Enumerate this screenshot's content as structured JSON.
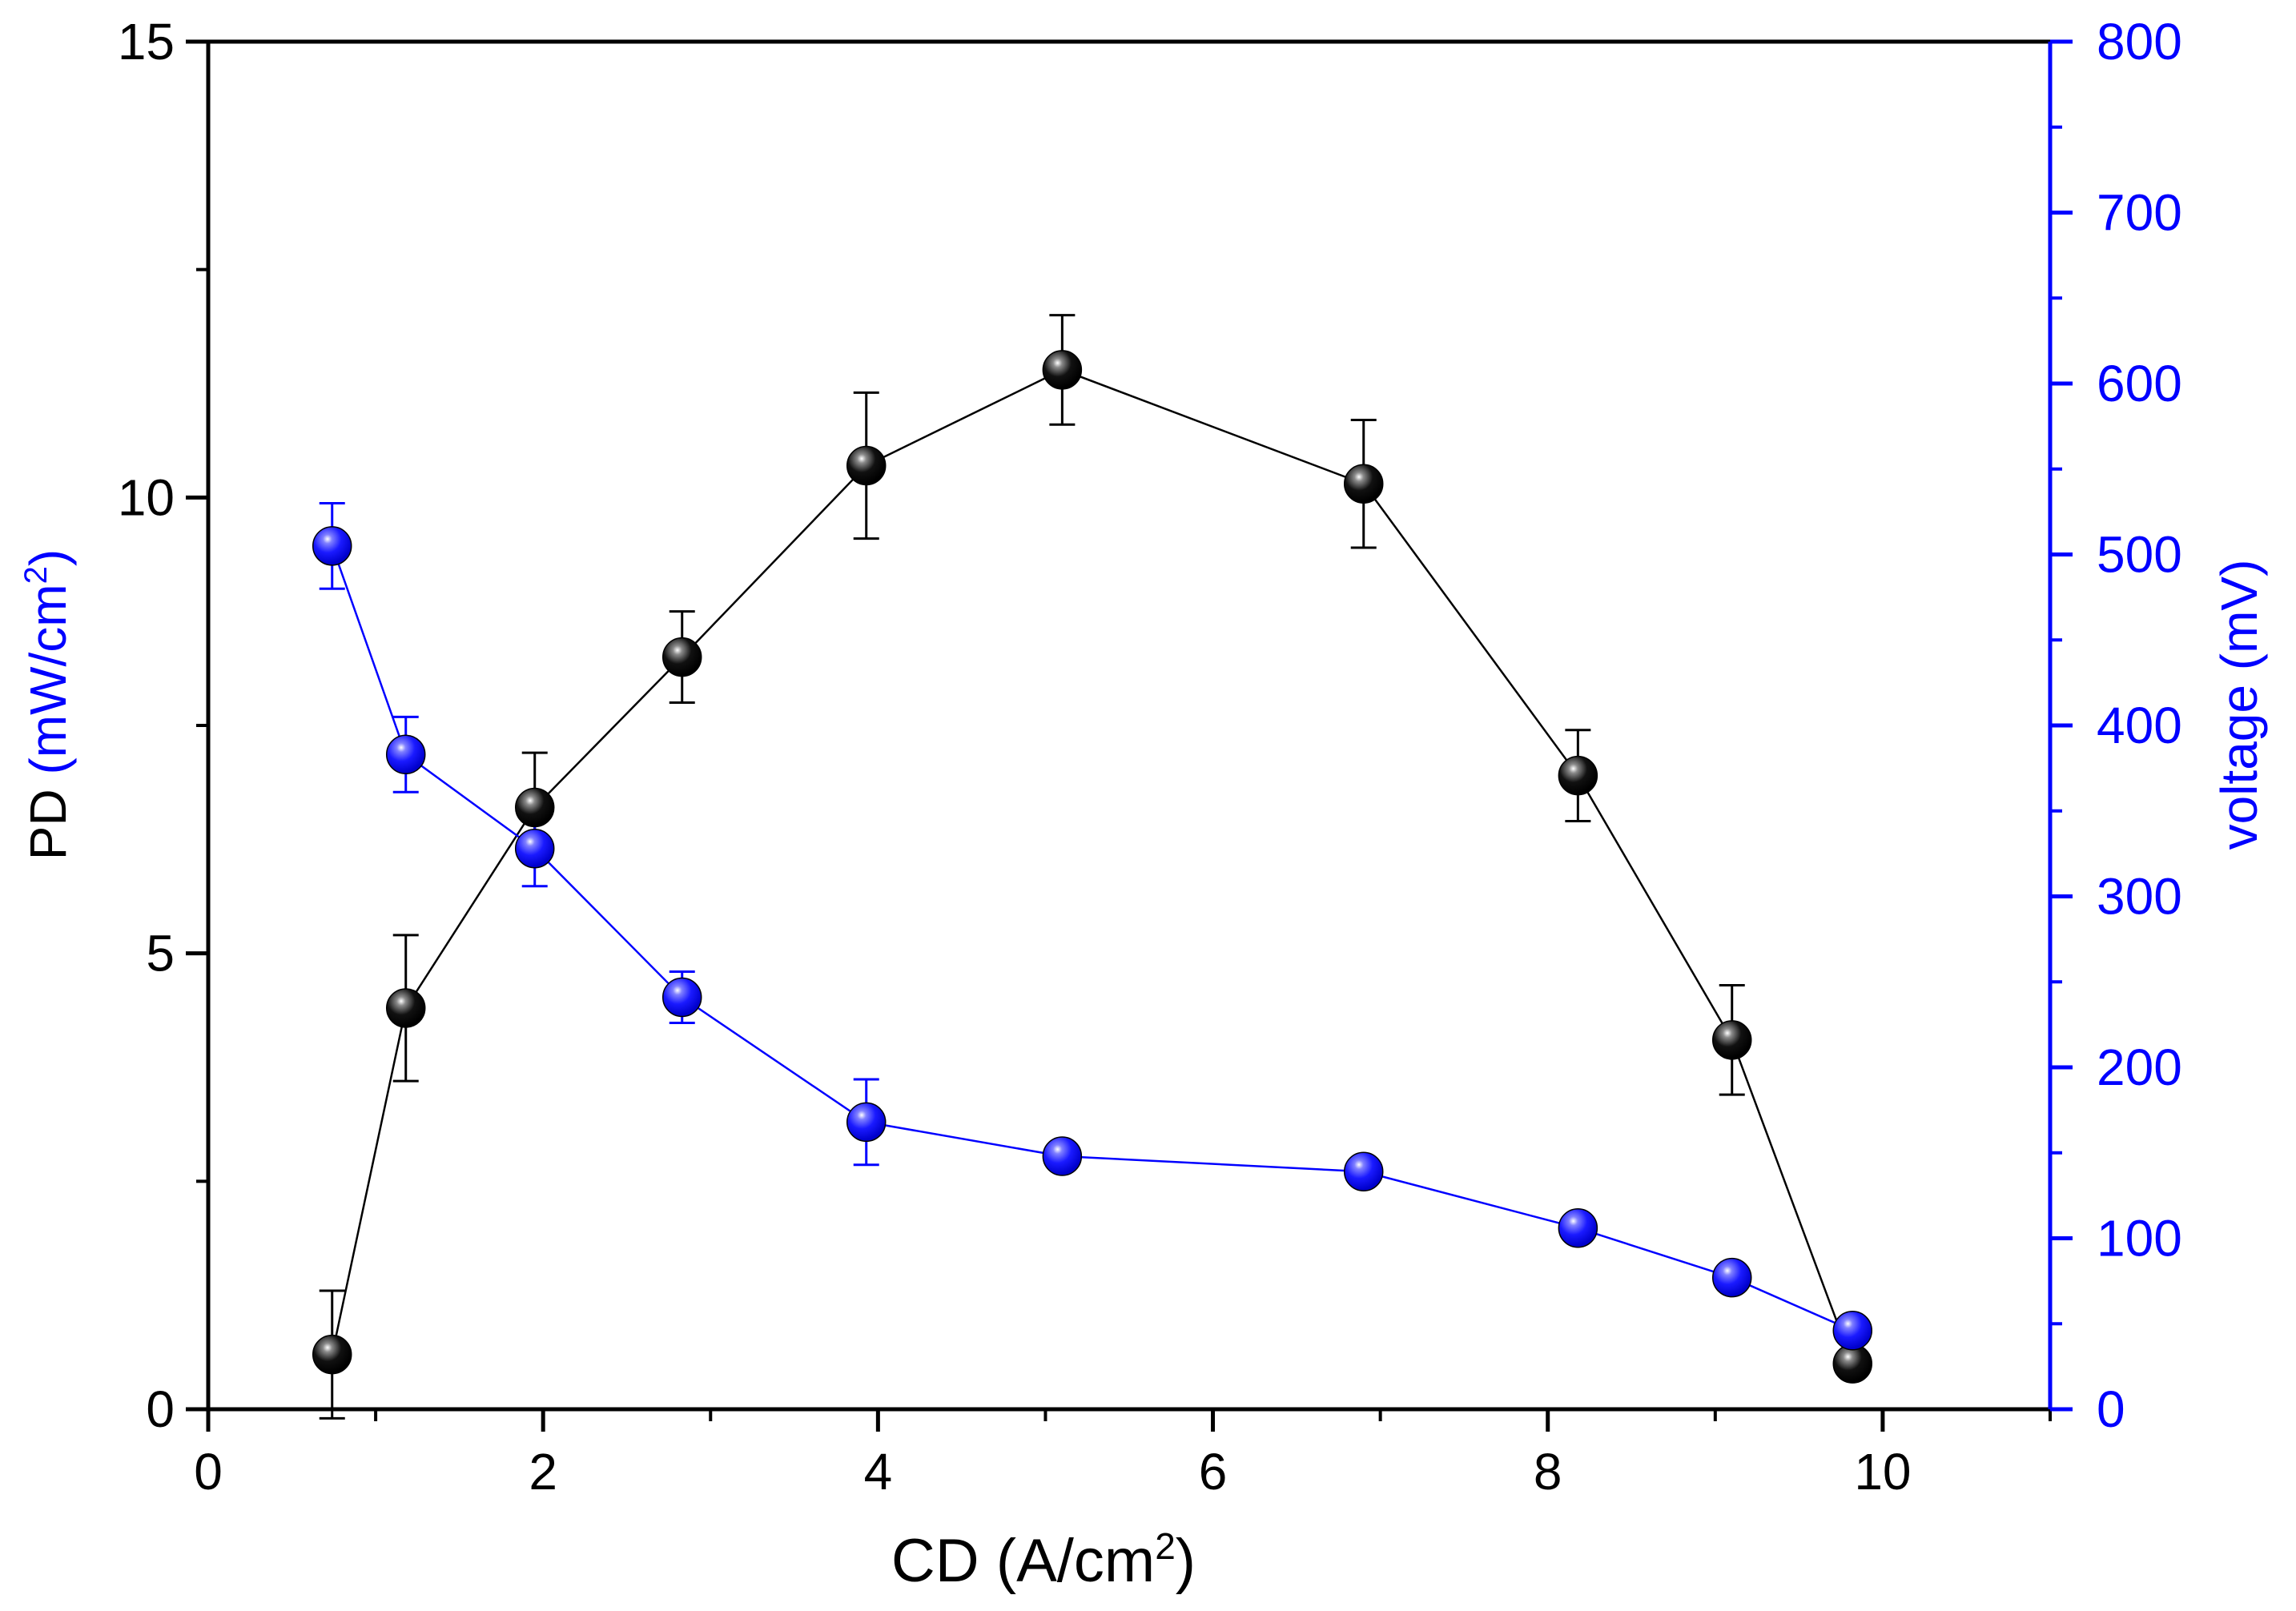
{
  "chart_data": {
    "type": "scatter",
    "title": "",
    "xlabel": {
      "base": "CD (A/cm",
      "sup": "2",
      "tail": ")"
    },
    "ylabel_left": {
      "part1": "PD",
      "part2": " (mW/cm",
      "sup": "2",
      "tail": ")"
    },
    "ylabel_right": "voltage (mV)",
    "xlim": [
      0,
      11
    ],
    "ylim_left": [
      0,
      15
    ],
    "ylim_right": [
      0,
      800
    ],
    "x_ticks": [
      "0",
      "2",
      "4",
      "6",
      "8",
      "10"
    ],
    "y_left_ticks": [
      "0",
      "5",
      "10",
      "15"
    ],
    "y_right_ticks": [
      "0",
      "100",
      "200",
      "300",
      "400",
      "500",
      "600",
      "700",
      "800"
    ],
    "grid": false,
    "legend": "none",
    "colors": {
      "pd": "#000000",
      "voltage": "#0000ff",
      "axis": "#000000",
      "right_axis": "#0000ff"
    },
    "series": [
      {
        "axis": "left",
        "color": "#000000",
        "x": [
          0.74,
          1.18,
          1.95,
          2.83,
          3.93,
          5.1,
          6.9,
          8.18,
          9.1,
          9.82
        ],
        "y": [
          0.6,
          4.4,
          6.6,
          8.25,
          10.35,
          11.4,
          10.15,
          6.95,
          4.05,
          0.5
        ],
        "err": [
          0.7,
          0.8,
          0.6,
          0.5,
          0.8,
          0.6,
          0.7,
          0.5,
          0.6,
          0.0
        ]
      },
      {
        "axis": "right",
        "color": "#0000ff",
        "x": [
          0.74,
          1.18,
          1.95,
          2.83,
          3.93,
          5.1,
          6.9,
          8.18,
          9.1,
          9.82
        ],
        "y": [
          505,
          383,
          328,
          241,
          168,
          148,
          139,
          106,
          77,
          46
        ],
        "err": [
          25,
          22,
          22,
          15,
          25,
          0,
          0,
          0,
          0,
          0
        ]
      }
    ]
  }
}
